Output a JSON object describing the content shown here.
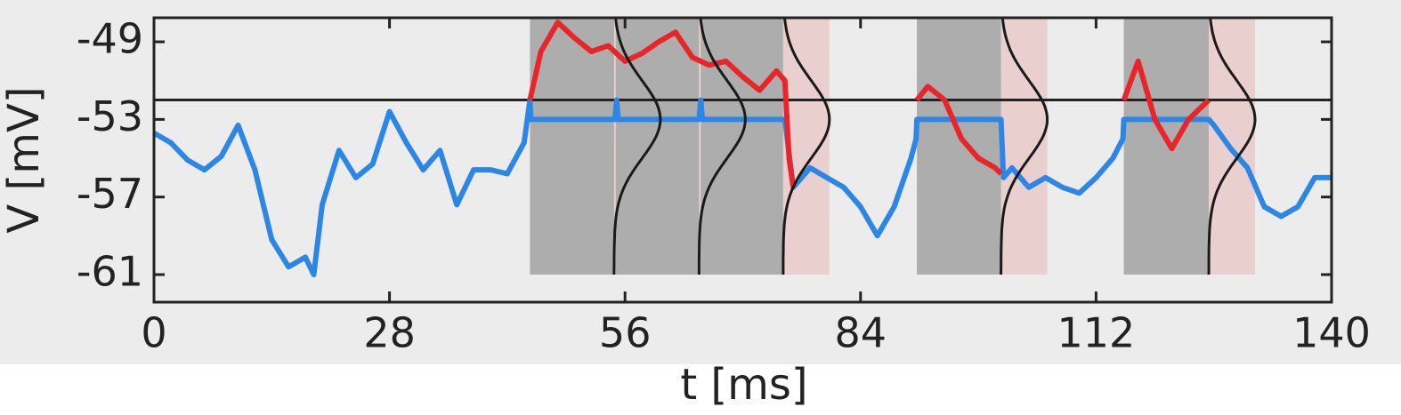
{
  "chart_data": {
    "type": "line",
    "x_label": "t [ms]",
    "y_label": "V [mV]",
    "xlim": [
      0,
      140
    ],
    "xticks": [
      0,
      28,
      56,
      84,
      112,
      140
    ],
    "ylim": [
      -62.42,
      -47.76
    ],
    "yticks": [
      -49,
      -53,
      -57,
      -61
    ],
    "threshold": -52,
    "threshold_color": "#222222",
    "windows": [
      [
        44.7,
        54.7
      ],
      [
        54.9,
        64.8
      ],
      [
        65,
        74.8
      ],
      [
        90.7,
        100.7
      ],
      [
        115.3,
        125.4
      ]
    ],
    "window_bottom": -61,
    "window_color": "#adadad",
    "density_color": "#e8c9c7",
    "density": {
      "mean": -53,
      "sd": 2,
      "width": 5.5,
      "color": "#1a1a1a"
    },
    "series": [
      {
        "name": "blue",
        "color": "#2b86e6",
        "x": [
          0,
          2,
          4,
          6,
          8,
          10,
          12,
          14,
          16,
          18,
          19,
          20,
          22,
          24,
          26,
          28,
          30,
          32,
          34,
          36,
          38,
          40,
          42,
          44,
          44.7,
          44.8,
          54.8,
          55,
          55.2,
          64.8,
          65,
          65.2,
          75,
          76,
          78,
          80,
          82,
          84,
          86,
          88,
          90,
          90.6,
          90.7,
          100.7,
          101,
          102,
          104,
          106,
          108,
          110,
          112,
          114,
          115.2,
          115.3,
          125.4,
          126,
          128,
          130,
          132,
          134,
          136,
          138,
          140
        ],
        "values": [
          -53.7,
          -54.2,
          -55.1,
          -55.6,
          -54.9,
          -53.3,
          -55.6,
          -59.2,
          -60.6,
          -60.1,
          -61,
          -57.4,
          -54.6,
          -56,
          -55.3,
          -52.6,
          -54.2,
          -55.6,
          -54.6,
          -57.4,
          -55.6,
          -55.6,
          -55.8,
          -54.2,
          -52,
          -53,
          -53,
          -52,
          -53,
          -53,
          -52,
          -53,
          -53,
          -56.5,
          -55.5,
          -56,
          -56.5,
          -57.5,
          -59,
          -57.5,
          -55,
          -54,
          -53,
          -53,
          -56,
          -55.5,
          -56.5,
          -56,
          -56.5,
          -56.8,
          -56,
          -55,
          -54,
          -53,
          -53,
          -53.3,
          -54.5,
          -55.5,
          -57.5,
          -58,
          -57.5,
          -56,
          -56
        ]
      },
      {
        "name": "red",
        "color": "#e8262a",
        "x": [
          44.7,
          46,
          48,
          50,
          52,
          54,
          56,
          58,
          60,
          62,
          64,
          66,
          68,
          70,
          72,
          74,
          75,
          75.5,
          76,
          76.1,
          90.7,
          92,
          94,
          96,
          98,
          100,
          100.7,
          100.8,
          115.3,
          117,
          119,
          121,
          123,
          125.4
        ],
        "values": [
          -52,
          -49.5,
          -48,
          -48.8,
          -49.5,
          -49.2,
          -50,
          -49.6,
          -49,
          -48.5,
          -49.8,
          -50.2,
          -50,
          -50.8,
          -51.5,
          -50.5,
          -51,
          -55,
          -56.5,
          null,
          -52,
          -51.3,
          -52,
          -54,
          -55,
          -55.5,
          -55.8,
          null,
          -52,
          -50,
          -53,
          -54.5,
          -53,
          -52
        ]
      }
    ]
  }
}
